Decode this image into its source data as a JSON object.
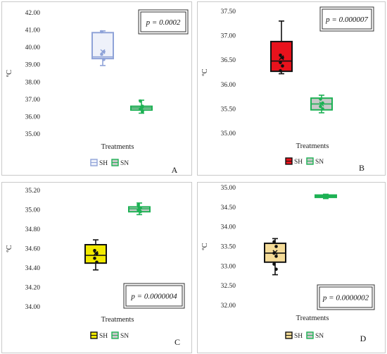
{
  "chart_data": [
    {
      "type": "box",
      "panel_letter": "A",
      "ylabel": "ºC",
      "xlabel": "Treatments",
      "ylim": [
        35.0,
        42.0
      ],
      "yticks": [
        "42.00",
        "41.00",
        "40.00",
        "39.00",
        "38.00",
        "37.00",
        "36.00",
        "35.00"
      ],
      "p_value": "p = 0.0002",
      "series": [
        {
          "name": "SH",
          "color": "#a3b3e0",
          "min": 38.95,
          "q1": 39.35,
          "median": 39.45,
          "q3": 40.85,
          "max": 40.95,
          "mean": 39.75,
          "points": [
            40.9,
            39.75,
            39.6,
            39.3
          ]
        },
        {
          "name": "SN",
          "color": "#1db154",
          "min": 36.2,
          "q1": 36.38,
          "median": 36.5,
          "q3": 36.6,
          "max": 36.95,
          "mean": 36.5,
          "points": [
            36.9,
            36.6,
            36.45,
            36.3
          ]
        }
      ]
    },
    {
      "type": "box",
      "panel_letter": "B",
      "ylabel": "ºC",
      "xlabel": "Treatments",
      "ylim": [
        35.0,
        37.5
      ],
      "yticks": [
        "37.50",
        "37.00",
        "36.50",
        "36.00",
        "35.50",
        "35.00"
      ],
      "p_value": "p = 0.000007",
      "series": [
        {
          "name": "SH",
          "color": "#e8121c",
          "min": 36.22,
          "q1": 36.27,
          "median": 36.48,
          "q3": 36.88,
          "max": 37.3,
          "mean": 36.55,
          "points": [
            36.6,
            36.55,
            36.45,
            36.38,
            36.28
          ]
        },
        {
          "name": "SN",
          "color": "#1db154",
          "min": 35.42,
          "q1": 35.48,
          "median": 35.6,
          "q3": 35.72,
          "max": 35.78,
          "mean": 35.6,
          "points": [
            35.7,
            35.62,
            35.55,
            35.5
          ]
        }
      ]
    },
    {
      "type": "box",
      "panel_letter": "C",
      "ylabel": "ºC",
      "xlabel": "Treatments",
      "ylim": [
        34.0,
        35.2
      ],
      "yticks": [
        "35.20",
        "35.00",
        "34.80",
        "34.60",
        "34.40",
        "34.20",
        "34.00"
      ],
      "p_value": "p = 0.0000004",
      "series": [
        {
          "name": "SH",
          "color": "#f2ea00",
          "min": 34.38,
          "q1": 34.45,
          "median": 34.53,
          "q3": 34.64,
          "max": 34.69,
          "mean": 34.55,
          "points": [
            34.58,
            34.55,
            34.5,
            34.46
          ]
        },
        {
          "name": "SN",
          "color": "#1db154",
          "min": 34.95,
          "q1": 34.98,
          "median": 35.01,
          "q3": 35.03,
          "max": 35.07,
          "mean": 35.01,
          "points": [
            35.05,
            35.02,
            35.0,
            34.98
          ]
        }
      ]
    },
    {
      "type": "box",
      "panel_letter": "D",
      "ylabel": "ºC",
      "xlabel": "Treatments",
      "ylim": [
        32.0,
        35.0
      ],
      "yticks": [
        "35.00",
        "34.50",
        "34.00",
        "33.50",
        "33.00",
        "32.50",
        "32.00"
      ],
      "p_value": "p = 0.0000002",
      "series": [
        {
          "name": "SH",
          "color": "#f5dc98",
          "min": 32.78,
          "q1": 33.1,
          "median": 33.33,
          "q3": 33.58,
          "max": 33.7,
          "mean": 33.35,
          "points": [
            33.62,
            33.5,
            33.33,
            33.25,
            33.05,
            32.92
          ]
        },
        {
          "name": "SN",
          "color": "#1db154",
          "min": 34.72,
          "q1": 34.75,
          "median": 34.78,
          "q3": 34.81,
          "max": 34.83,
          "mean": 34.78,
          "points": [
            34.8,
            34.77
          ]
        }
      ]
    }
  ]
}
